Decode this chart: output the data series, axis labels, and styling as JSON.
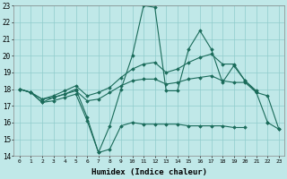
{
  "xlabel": "Humidex (Indice chaleur)",
  "x": [
    0,
    1,
    2,
    3,
    4,
    5,
    6,
    7,
    8,
    9,
    10,
    11,
    12,
    13,
    14,
    15,
    16,
    17,
    18,
    19,
    20,
    21,
    22,
    23
  ],
  "line1": [
    18.0,
    17.8,
    17.2,
    17.3,
    17.5,
    17.7,
    16.1,
    14.2,
    14.4,
    15.8,
    16.0,
    15.9,
    15.9,
    15.9,
    15.9,
    15.8,
    15.8,
    15.8,
    15.8,
    15.7,
    15.7,
    null,
    16.0,
    15.6
  ],
  "line2": [
    18.0,
    17.8,
    17.2,
    17.5,
    17.7,
    18.0,
    16.3,
    14.2,
    15.8,
    18.0,
    20.0,
    23.0,
    22.9,
    17.9,
    17.9,
    20.4,
    21.5,
    20.4,
    18.4,
    19.4,
    18.5,
    17.8,
    16.0,
    null
  ],
  "line3": [
    18.0,
    17.8,
    17.4,
    17.5,
    17.7,
    17.9,
    17.3,
    17.4,
    17.8,
    18.2,
    18.5,
    18.6,
    18.6,
    18.3,
    18.4,
    18.6,
    18.7,
    18.8,
    18.5,
    18.4,
    18.4,
    17.8,
    17.6,
    15.6
  ],
  "line4": [
    18.0,
    17.8,
    17.4,
    17.6,
    17.9,
    18.2,
    17.6,
    17.8,
    18.1,
    18.7,
    19.2,
    19.5,
    19.6,
    19.0,
    19.2,
    19.6,
    19.9,
    20.1,
    19.5,
    19.5,
    18.5,
    17.9,
    null,
    null
  ],
  "line_color": "#1a6b5a",
  "bg_color": "#c0e8e8",
  "grid_color": "#90cccc",
  "ylim": [
    14,
    23
  ],
  "yticks": [
    14,
    15,
    16,
    17,
    18,
    19,
    20,
    21,
    22,
    23
  ],
  "xticks": [
    0,
    1,
    2,
    3,
    4,
    5,
    6,
    7,
    8,
    9,
    10,
    11,
    12,
    13,
    14,
    15,
    16,
    17,
    18,
    19,
    20,
    21,
    22,
    23
  ],
  "figsize": [
    3.2,
    2.0
  ],
  "dpi": 100
}
